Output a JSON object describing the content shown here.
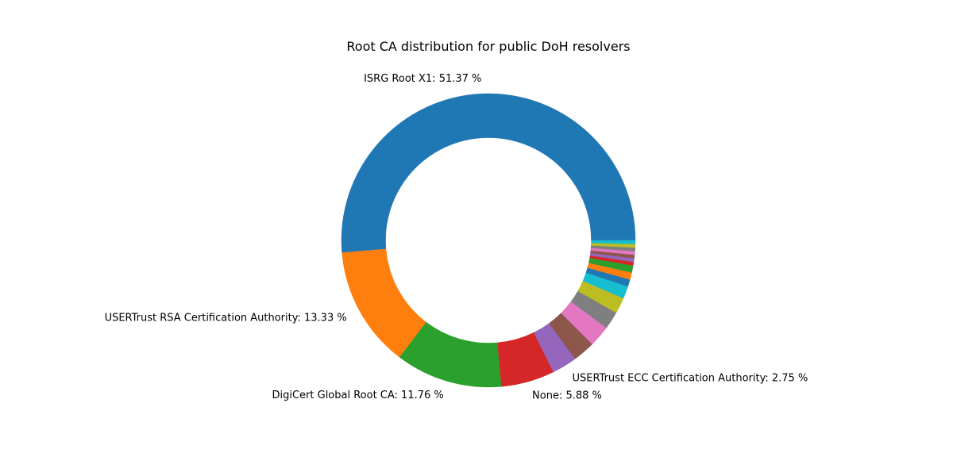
{
  "chart_data": {
    "type": "pie",
    "style": "donut",
    "title": "Root CA distribution for public DoH resolvers",
    "slices": [
      {
        "label": "ISRG Root X1",
        "value": 51.37,
        "color": "#1f77b4",
        "display": "ISRG Root X1: 51.37 %"
      },
      {
        "label": "USERTrust RSA Certification Authority",
        "value": 13.33,
        "color": "#ff7f0e",
        "display": "USERTrust RSA Certification Authority: 13.33 %"
      },
      {
        "label": "DigiCert Global Root CA",
        "value": 11.76,
        "color": "#2ca02c",
        "display": "DigiCert Global Root CA: 11.76 %"
      },
      {
        "label": "None",
        "value": 5.88,
        "color": "#d62728",
        "display": "None: 5.88 %"
      },
      {
        "label": "USERTrust ECC Certification Authority",
        "value": 2.75,
        "color": "#9467bd",
        "display": "USERTrust ECC Certification Authority: 2.75 %"
      },
      {
        "label": "",
        "value": 2.45,
        "color": "#8c564b",
        "display": ""
      },
      {
        "label": "",
        "value": 2.35,
        "color": "#e377c2",
        "display": ""
      },
      {
        "label": "",
        "value": 1.96,
        "color": "#7f7f7f",
        "display": ""
      },
      {
        "label": "",
        "value": 1.76,
        "color": "#bcbd22",
        "display": ""
      },
      {
        "label": "",
        "value": 1.37,
        "color": "#17becf",
        "display": ""
      },
      {
        "label": "",
        "value": 0.78,
        "color": "#1f77b4",
        "display": ""
      },
      {
        "label": "",
        "value": 0.78,
        "color": "#ff7f0e",
        "display": ""
      },
      {
        "label": "",
        "value": 0.78,
        "color": "#2ca02c",
        "display": ""
      },
      {
        "label": "",
        "value": 0.39,
        "color": "#d62728",
        "display": ""
      },
      {
        "label": "",
        "value": 0.39,
        "color": "#9467bd",
        "display": ""
      },
      {
        "label": "",
        "value": 0.39,
        "color": "#8c564b",
        "display": ""
      },
      {
        "label": "",
        "value": 0.39,
        "color": "#e377c2",
        "display": ""
      },
      {
        "label": "",
        "value": 0.39,
        "color": "#7f7f7f",
        "display": ""
      },
      {
        "label": "",
        "value": 0.39,
        "color": "#bcbd22",
        "display": ""
      },
      {
        "label": "",
        "value": 0.39,
        "color": "#17becf",
        "display": ""
      }
    ],
    "start_angle_deg": 0,
    "direction": "counterclockwise",
    "legend": "none"
  }
}
